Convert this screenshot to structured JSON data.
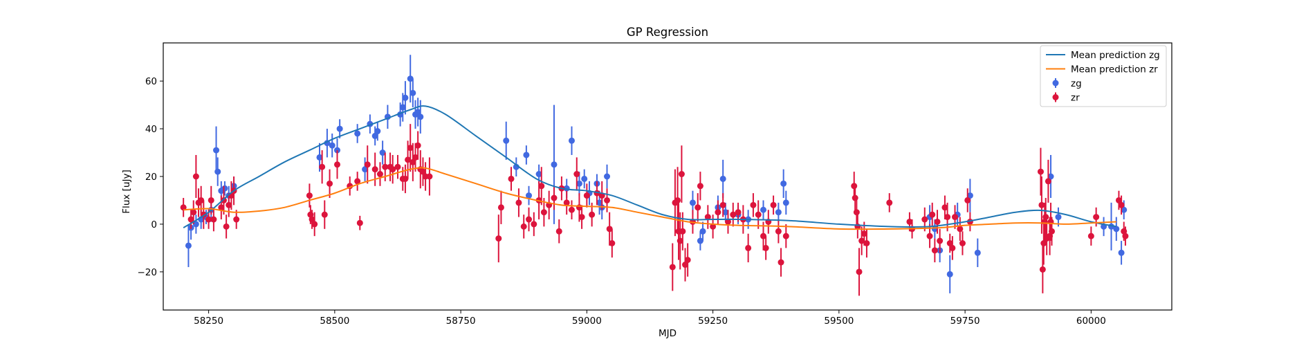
{
  "chart_data": {
    "type": "scatter",
    "title": "GP Regression",
    "xlabel": "MJD",
    "ylabel": "Flux [uJy]",
    "xlim": [
      58160,
      60160
    ],
    "ylim": [
      -36,
      76
    ],
    "xticks": [
      58250,
      58500,
      58750,
      59000,
      59250,
      59500,
      59750,
      60000
    ],
    "yticks": [
      -20,
      0,
      20,
      40,
      60
    ],
    "legend_position": "top-right",
    "colors": {
      "mean_zg": "#1f77b4",
      "mean_zr": "#ff7f0e",
      "zg": "#4169e1",
      "zr": "#dc143c"
    },
    "lines": [
      {
        "name": "Mean prediction zg",
        "x": [
          58200,
          58250,
          58300,
          58350,
          58400,
          58450,
          58500,
          58550,
          58600,
          58650,
          58680,
          58720,
          58780,
          58840,
          58900,
          58950,
          59000,
          59050,
          59100,
          59150,
          59200,
          59250,
          59300,
          59400,
          59500,
          59600,
          59680,
          59750,
          59800,
          59850,
          59900,
          59950,
          60000,
          60050
        ],
        "y": [
          -1.5,
          5,
          14,
          20,
          26,
          31,
          36,
          40,
          44,
          48,
          49.5,
          46,
          37,
          28,
          19,
          15,
          14,
          12,
          8,
          4,
          2,
          2,
          2,
          1.5,
          0,
          -1,
          -1,
          1,
          3,
          5,
          5.8,
          4,
          1,
          -1
        ]
      },
      {
        "name": "Mean prediction zr",
        "x": [
          58200,
          58250,
          58300,
          58350,
          58400,
          58450,
          58500,
          58550,
          58600,
          58650,
          58680,
          58720,
          58780,
          58840,
          58900,
          58950,
          59000,
          59050,
          59100,
          59150,
          59200,
          59250,
          59300,
          59400,
          59500,
          59600,
          59700,
          59750,
          59800,
          59850,
          59900,
          59950,
          60000,
          60050
        ],
        "y": [
          6,
          6.5,
          5,
          5.5,
          7,
          10,
          13,
          17,
          20,
          23,
          23.5,
          21,
          17,
          13,
          10,
          8,
          7.5,
          7,
          5,
          3,
          1,
          0,
          -0.5,
          -1,
          -2,
          -2,
          -1.5,
          -0.5,
          0,
          0.5,
          0.5,
          0,
          0.5,
          1
        ]
      }
    ],
    "series": [
      {
        "name": "zg",
        "points": [
          [
            58210,
            -9,
            9
          ],
          [
            58215,
            -1.5,
            5
          ],
          [
            58225,
            0,
            4
          ],
          [
            58235,
            2,
            4
          ],
          [
            58245,
            3,
            3
          ],
          [
            58255,
            6,
            5
          ],
          [
            58265,
            31,
            10
          ],
          [
            58268,
            22,
            6
          ],
          [
            58275,
            14,
            4
          ],
          [
            58282,
            15,
            3
          ],
          [
            58290,
            12,
            4
          ],
          [
            58300,
            16,
            4
          ],
          [
            58470,
            28,
            6
          ],
          [
            58485,
            34,
            6
          ],
          [
            58495,
            33,
            5
          ],
          [
            58505,
            31,
            5
          ],
          [
            58510,
            40,
            4
          ],
          [
            58545,
            38,
            4
          ],
          [
            58560,
            23,
            5
          ],
          [
            58570,
            42,
            4
          ],
          [
            58580,
            37,
            4
          ],
          [
            58585,
            39,
            4
          ],
          [
            58595,
            30,
            5
          ],
          [
            58605,
            45,
            5
          ],
          [
            58630,
            46,
            5
          ],
          [
            58635,
            49,
            6
          ],
          [
            58640,
            53,
            7
          ],
          [
            58650,
            61,
            10
          ],
          [
            58655,
            55,
            6
          ],
          [
            58660,
            46,
            6
          ],
          [
            58665,
            47,
            6
          ],
          [
            58670,
            45,
            7
          ],
          [
            58840,
            35,
            8
          ],
          [
            58860,
            24,
            4
          ],
          [
            58880,
            29,
            4
          ],
          [
            58885,
            12,
            4
          ],
          [
            58905,
            21,
            4
          ],
          [
            58935,
            25,
            25
          ],
          [
            58960,
            15,
            4
          ],
          [
            58970,
            35,
            6
          ],
          [
            58985,
            17,
            5
          ],
          [
            58995,
            19,
            4
          ],
          [
            59005,
            13,
            5
          ],
          [
            59020,
            17,
            4
          ],
          [
            59025,
            9,
            5
          ],
          [
            59030,
            7,
            5
          ],
          [
            59040,
            20,
            5
          ],
          [
            59210,
            9,
            5
          ],
          [
            59225,
            -7,
            4
          ],
          [
            59230,
            -3,
            4
          ],
          [
            59260,
            7,
            5
          ],
          [
            59270,
            19,
            8
          ],
          [
            59275,
            5,
            4
          ],
          [
            59300,
            4,
            4
          ],
          [
            59320,
            2,
            4
          ],
          [
            59350,
            6,
            4
          ],
          [
            59380,
            5,
            4
          ],
          [
            59390,
            17,
            6
          ],
          [
            59395,
            9,
            5
          ],
          [
            59680,
            3,
            5
          ],
          [
            59690,
            -2,
            4
          ],
          [
            59700,
            -11,
            5
          ],
          [
            59720,
            -21,
            8
          ],
          [
            59735,
            4,
            5
          ],
          [
            59760,
            12,
            7
          ],
          [
            59775,
            -12,
            6
          ],
          [
            59920,
            20,
            9
          ],
          [
            59935,
            3,
            4
          ],
          [
            60025,
            -1,
            4
          ],
          [
            60040,
            -1,
            10
          ],
          [
            60050,
            -2,
            5
          ],
          [
            60060,
            -12,
            5
          ],
          [
            60065,
            6,
            4
          ]
        ]
      },
      {
        "name": "zr",
        "points": [
          [
            58200,
            7,
            4
          ],
          [
            58215,
            2,
            4
          ],
          [
            58220,
            5,
            5
          ],
          [
            58225,
            20,
            9
          ],
          [
            58230,
            9,
            6
          ],
          [
            58235,
            10,
            6
          ],
          [
            58240,
            4,
            6
          ],
          [
            58250,
            2,
            4
          ],
          [
            58255,
            10,
            6
          ],
          [
            58260,
            2,
            5
          ],
          [
            58275,
            7,
            5
          ],
          [
            58280,
            10,
            6
          ],
          [
            58285,
            -1,
            5
          ],
          [
            58290,
            8,
            5
          ],
          [
            58295,
            12,
            6
          ],
          [
            58300,
            14,
            6
          ],
          [
            58305,
            2,
            4
          ],
          [
            58450,
            12,
            5
          ],
          [
            58452,
            4,
            4
          ],
          [
            58455,
            2,
            4
          ],
          [
            58460,
            0,
            5
          ],
          [
            58475,
            24,
            7
          ],
          [
            58480,
            4,
            6
          ],
          [
            58490,
            17,
            6
          ],
          [
            58505,
            25,
            6
          ],
          [
            58530,
            16,
            4
          ],
          [
            58545,
            18,
            4
          ],
          [
            58550,
            0.5,
            3
          ],
          [
            58565,
            25,
            8
          ],
          [
            58580,
            23,
            7
          ],
          [
            58590,
            21,
            5
          ],
          [
            58600,
            24,
            6
          ],
          [
            58610,
            24,
            6
          ],
          [
            58615,
            23,
            6
          ],
          [
            58625,
            24,
            5
          ],
          [
            58635,
            19,
            5
          ],
          [
            58640,
            19,
            6
          ],
          [
            58645,
            27,
            8
          ],
          [
            58650,
            32,
            10
          ],
          [
            58655,
            26,
            8
          ],
          [
            58660,
            28,
            6
          ],
          [
            58665,
            33,
            6
          ],
          [
            58670,
            23,
            8
          ],
          [
            58675,
            22,
            6
          ],
          [
            58680,
            20,
            6
          ],
          [
            58688,
            20,
            8
          ],
          [
            58825,
            -6,
            10
          ],
          [
            58830,
            7,
            7
          ],
          [
            58850,
            19,
            5
          ],
          [
            58865,
            9,
            6
          ],
          [
            58875,
            -1,
            5
          ],
          [
            58885,
            2,
            5
          ],
          [
            58895,
            0,
            5
          ],
          [
            58905,
            10,
            8
          ],
          [
            58910,
            16,
            8
          ],
          [
            58915,
            5,
            6
          ],
          [
            58925,
            8,
            6
          ],
          [
            58935,
            11,
            5
          ],
          [
            58945,
            -3,
            5
          ],
          [
            58950,
            15,
            5
          ],
          [
            58960,
            9,
            5
          ],
          [
            58970,
            6,
            4
          ],
          [
            58980,
            21,
            7
          ],
          [
            58985,
            7,
            6
          ],
          [
            58990,
            3,
            5
          ],
          [
            59000,
            12,
            5
          ],
          [
            59010,
            4,
            5
          ],
          [
            59020,
            13,
            5
          ],
          [
            59030,
            12,
            6
          ],
          [
            59040,
            10,
            5
          ],
          [
            59045,
            -2,
            7
          ],
          [
            59050,
            -8,
            6
          ],
          [
            59170,
            -18,
            10
          ],
          [
            59175,
            9,
            14
          ],
          [
            59180,
            10,
            14
          ],
          [
            59182,
            -3,
            12
          ],
          [
            59185,
            -7,
            12
          ],
          [
            59188,
            21,
            12
          ],
          [
            59190,
            -3,
            8
          ],
          [
            59195,
            -17,
            7
          ],
          [
            59200,
            -15,
            7
          ],
          [
            59210,
            1,
            5
          ],
          [
            59220,
            7,
            6
          ],
          [
            59225,
            16,
            6
          ],
          [
            59240,
            3,
            5
          ],
          [
            59250,
            -1,
            5
          ],
          [
            59260,
            5,
            5
          ],
          [
            59270,
            8,
            5
          ],
          [
            59280,
            1,
            5
          ],
          [
            59290,
            4,
            5
          ],
          [
            59300,
            5,
            4
          ],
          [
            59310,
            2,
            6
          ],
          [
            59320,
            -10,
            6
          ],
          [
            59330,
            8,
            5
          ],
          [
            59340,
            4,
            6
          ],
          [
            59350,
            -5,
            6
          ],
          [
            59355,
            -10,
            5
          ],
          [
            59360,
            1,
            5
          ],
          [
            59370,
            8,
            4
          ],
          [
            59380,
            -3,
            5
          ],
          [
            59385,
            -16,
            6
          ],
          [
            59395,
            -5,
            5
          ],
          [
            59530,
            16,
            6
          ],
          [
            59532,
            11,
            6
          ],
          [
            59535,
            5,
            5
          ],
          [
            59537,
            -1,
            5
          ],
          [
            59540,
            -20,
            10
          ],
          [
            59545,
            -7,
            6
          ],
          [
            59550,
            -4,
            5
          ],
          [
            59555,
            -8,
            6
          ],
          [
            59600,
            9,
            4
          ],
          [
            59640,
            1,
            4
          ],
          [
            59645,
            -2,
            4
          ],
          [
            59670,
            2,
            5
          ],
          [
            59680,
            -5,
            5
          ],
          [
            59685,
            4,
            5
          ],
          [
            59690,
            -11,
            5
          ],
          [
            59695,
            1,
            5
          ],
          [
            59700,
            -7,
            5
          ],
          [
            59710,
            7,
            5
          ],
          [
            59715,
            3,
            6
          ],
          [
            59720,
            -8,
            4
          ],
          [
            59725,
            -10,
            5
          ],
          [
            59730,
            3,
            5
          ],
          [
            59740,
            -2,
            5
          ],
          [
            59745,
            -8,
            5
          ],
          [
            59755,
            10,
            5
          ],
          [
            59760,
            1,
            4
          ],
          [
            59900,
            22,
            10
          ],
          [
            59902,
            8,
            12
          ],
          [
            59904,
            -19,
            10
          ],
          [
            59906,
            -8,
            9
          ],
          [
            59908,
            1,
            8
          ],
          [
            59910,
            3,
            8
          ],
          [
            59912,
            -6,
            7
          ],
          [
            59915,
            18,
            9
          ],
          [
            59918,
            -5,
            8
          ],
          [
            59920,
            1,
            8
          ],
          [
            59922,
            -3,
            6
          ],
          [
            60000,
            -5,
            4
          ],
          [
            60010,
            3,
            4
          ],
          [
            60055,
            10,
            4
          ],
          [
            60060,
            8,
            4
          ],
          [
            60065,
            -3,
            4
          ],
          [
            60068,
            -5,
            4
          ]
        ]
      }
    ]
  }
}
